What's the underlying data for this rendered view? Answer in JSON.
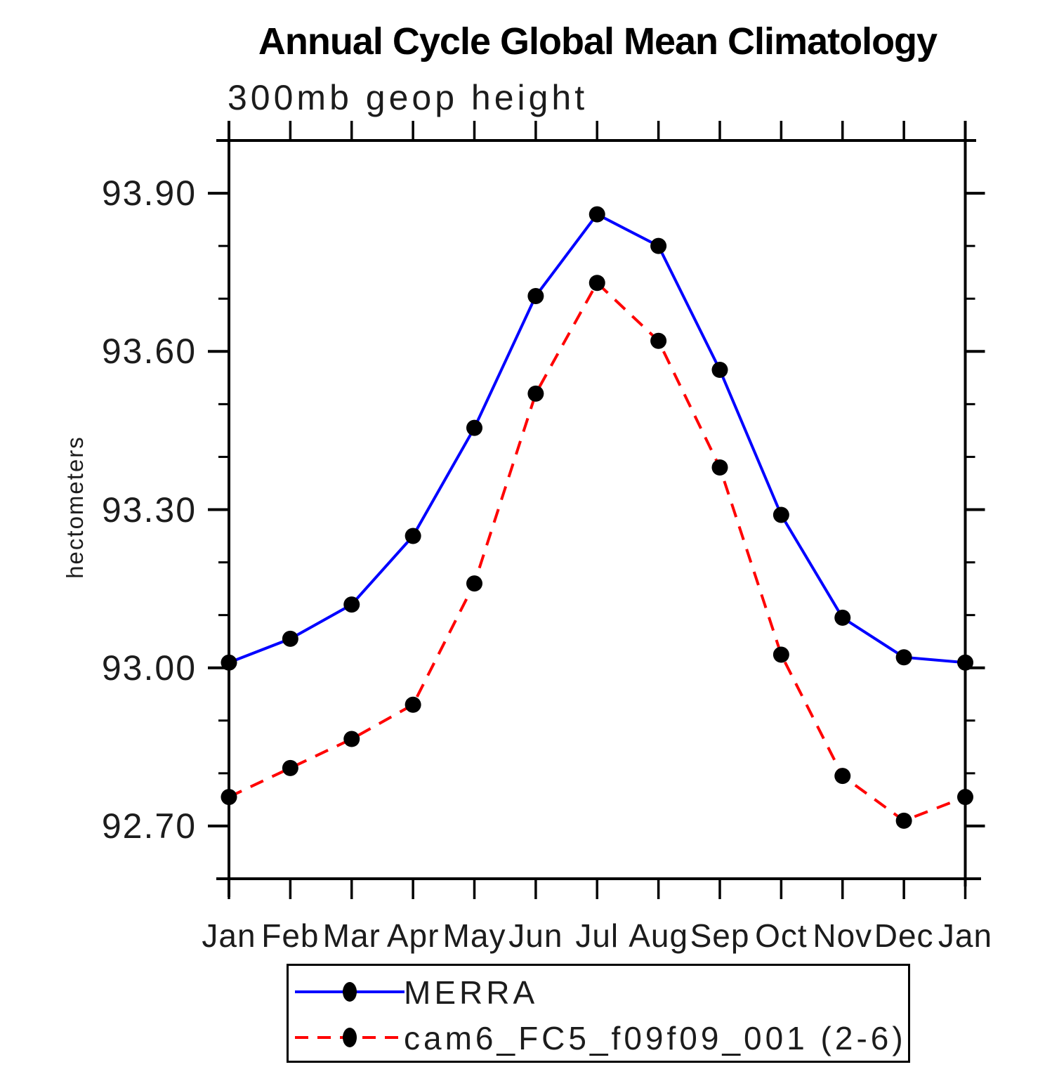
{
  "chart_data": {
    "type": "line",
    "title": "Annual Cycle Global Mean Climatology",
    "subtitle": "300mb geop height",
    "ylabel": "hectometers",
    "xlabel": "",
    "x": [
      "Jan",
      "Feb",
      "Mar",
      "Apr",
      "May",
      "Jun",
      "Jul",
      "Aug",
      "Sep",
      "Oct",
      "Nov",
      "Dec",
      "Jan"
    ],
    "series": [
      {
        "name": "MERRA",
        "color": "#0000ff",
        "line_style": "solid",
        "marker": "filled-circle",
        "marker_color": "#000000",
        "values": [
          93.01,
          93.055,
          93.12,
          93.25,
          93.455,
          93.705,
          93.86,
          93.8,
          93.565,
          93.29,
          93.095,
          93.02,
          93.01
        ]
      },
      {
        "name": "cam6_FC5_f09f09_001 (2-6)",
        "color": "#ff0000",
        "line_style": "dashed",
        "marker": "filled-circle",
        "marker_color": "#000000",
        "values": [
          92.755,
          92.81,
          92.865,
          92.93,
          93.16,
          93.52,
          93.73,
          93.62,
          93.38,
          93.025,
          92.795,
          92.71,
          92.755
        ]
      }
    ],
    "ylim": [
      92.6,
      94.0
    ],
    "y_major_ticks": {
      "values": [
        92.7,
        93.0,
        93.3,
        93.6,
        93.9
      ],
      "labels": [
        "92.70",
        "93.00",
        "93.30",
        "93.60",
        "93.90"
      ]
    },
    "y_minor_ticks": [
      92.8,
      92.9,
      93.1,
      93.2,
      93.4,
      93.5,
      93.7,
      93.8
    ],
    "grid": false,
    "legend_position": "bottom",
    "axis_color": "#000000",
    "text_color": "#1c1c1c"
  }
}
